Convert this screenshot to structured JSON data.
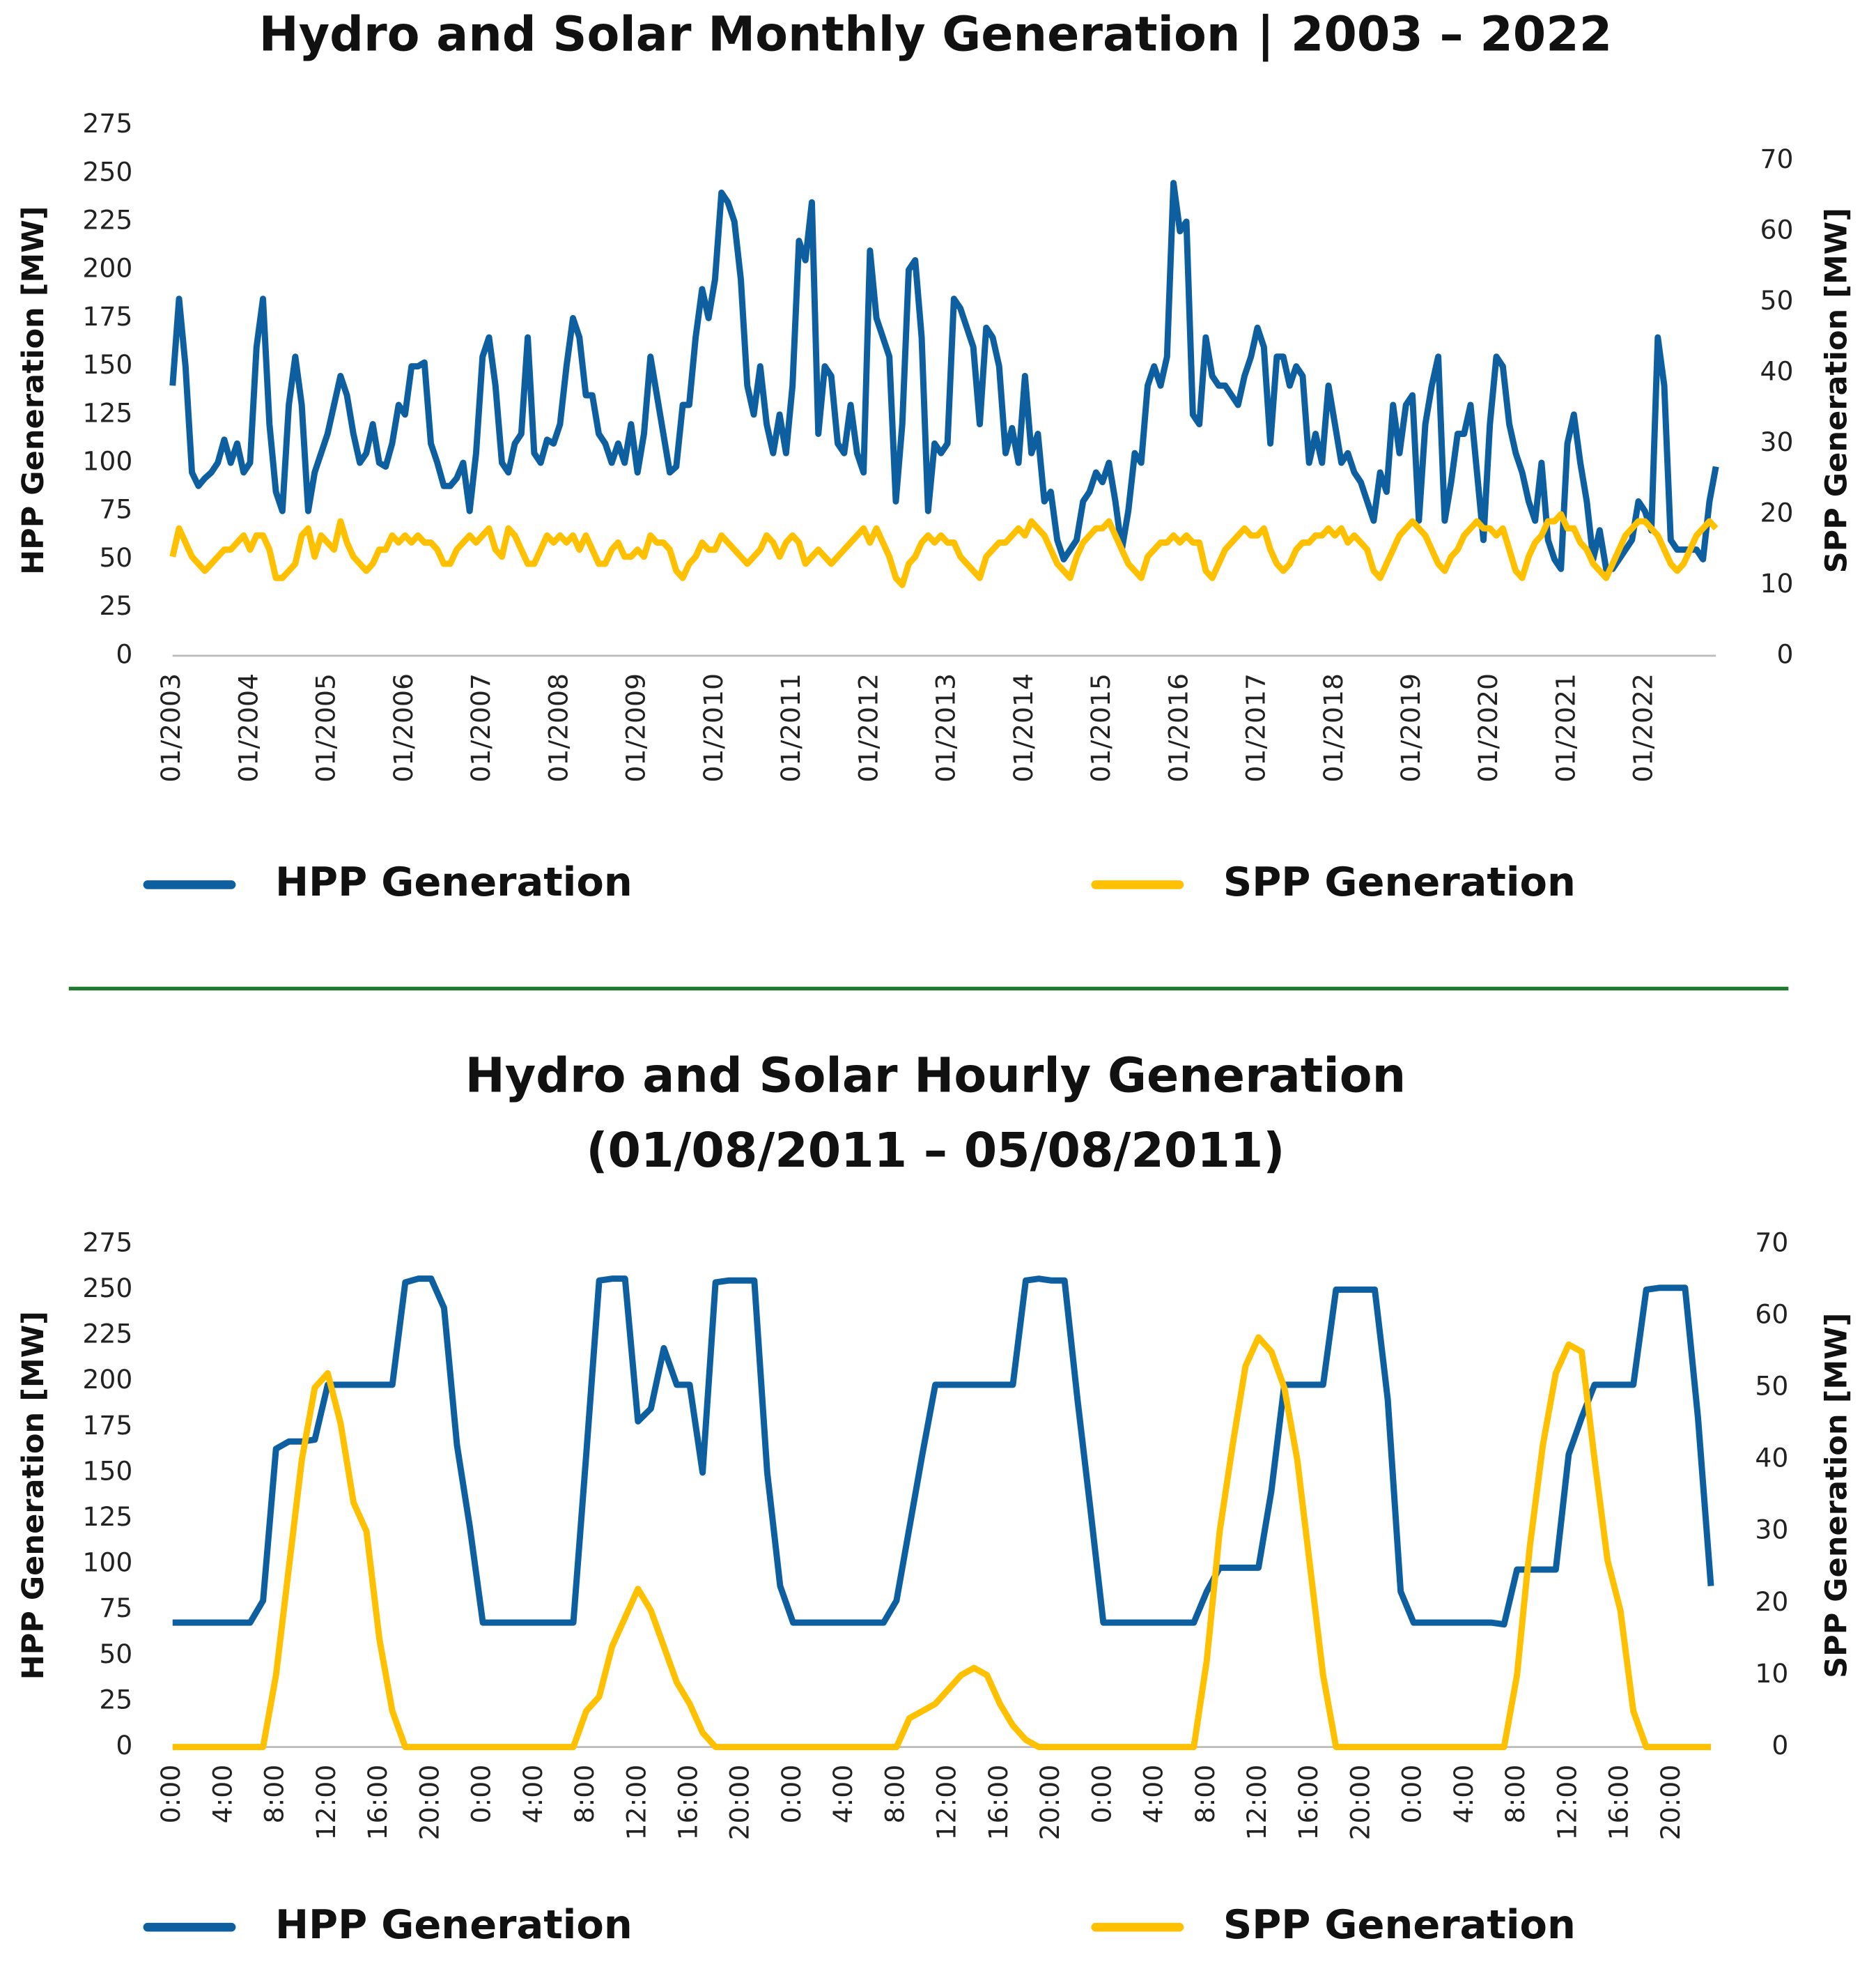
{
  "chart_data": [
    {
      "type": "line",
      "title": [
        "Hydro and Solar Monthly Generation | 2003 – 2022"
      ],
      "y_label": "HPP Generation [MW]",
      "y2_label": "SPP Generation [MW]",
      "categories": [
        "01/2003",
        null,
        null,
        null,
        null,
        null,
        null,
        null,
        null,
        null,
        null,
        null,
        "01/2004",
        null,
        null,
        null,
        null,
        null,
        null,
        null,
        null,
        null,
        null,
        null,
        "01/2005",
        null,
        null,
        null,
        null,
        null,
        null,
        null,
        null,
        null,
        null,
        null,
        "01/2006",
        null,
        null,
        null,
        null,
        null,
        null,
        null,
        null,
        null,
        null,
        null,
        "01/2007",
        null,
        null,
        null,
        null,
        null,
        null,
        null,
        null,
        null,
        null,
        null,
        "01/2008",
        null,
        null,
        null,
        null,
        null,
        null,
        null,
        null,
        null,
        null,
        null,
        "01/2009",
        null,
        null,
        null,
        null,
        null,
        null,
        null,
        null,
        null,
        null,
        null,
        "01/2010",
        null,
        null,
        null,
        null,
        null,
        null,
        null,
        null,
        null,
        null,
        null,
        "01/2011",
        null,
        null,
        null,
        null,
        null,
        null,
        null,
        null,
        null,
        null,
        null,
        "01/2012",
        null,
        null,
        null,
        null,
        null,
        null,
        null,
        null,
        null,
        null,
        null,
        "01/2013",
        null,
        null,
        null,
        null,
        null,
        null,
        null,
        null,
        null,
        null,
        null,
        "01/2014",
        null,
        null,
        null,
        null,
        null,
        null,
        null,
        null,
        null,
        null,
        null,
        "01/2015",
        null,
        null,
        null,
        null,
        null,
        null,
        null,
        null,
        null,
        null,
        null,
        "01/2016",
        null,
        null,
        null,
        null,
        null,
        null,
        null,
        null,
        null,
        null,
        null,
        "01/2017",
        null,
        null,
        null,
        null,
        null,
        null,
        null,
        null,
        null,
        null,
        null,
        "01/2018",
        null,
        null,
        null,
        null,
        null,
        null,
        null,
        null,
        null,
        null,
        null,
        "01/2019",
        null,
        null,
        null,
        null,
        null,
        null,
        null,
        null,
        null,
        null,
        null,
        "01/2020",
        null,
        null,
        null,
        null,
        null,
        null,
        null,
        null,
        null,
        null,
        null,
        "01/2021",
        null,
        null,
        null,
        null,
        null,
        null,
        null,
        null,
        null,
        null,
        null,
        "01/2022",
        null,
        null,
        null,
        null,
        null,
        null,
        null,
        null,
        null,
        null,
        null
      ],
      "series": [
        {
          "name": "HPP Generation",
          "color": "#0d5fa0",
          "values": [
            140,
            185,
            150,
            95,
            88,
            92,
            95,
            100,
            112,
            100,
            110,
            95,
            100,
            160,
            185,
            120,
            85,
            75,
            130,
            155,
            130,
            75,
            95,
            105,
            115,
            130,
            145,
            135,
            115,
            100,
            105,
            120,
            100,
            98,
            110,
            130,
            125,
            150,
            150,
            152,
            110,
            100,
            88,
            88,
            92,
            100,
            75,
            105,
            155,
            165,
            140,
            100,
            95,
            110,
            115,
            165,
            105,
            100,
            112,
            110,
            120,
            150,
            175,
            165,
            135,
            135,
            115,
            110,
            100,
            110,
            100,
            120,
            95,
            115,
            155,
            135,
            115,
            95,
            98,
            130,
            130,
            165,
            190,
            175,
            195,
            240,
            235,
            225,
            195,
            140,
            125,
            150,
            120,
            105,
            125,
            105,
            140,
            215,
            205,
            235,
            115,
            150,
            145,
            110,
            105,
            130,
            105,
            95,
            210,
            175,
            165,
            155,
            80,
            120,
            200,
            205,
            165,
            75,
            110,
            105,
            110,
            185,
            180,
            170,
            160,
            120,
            170,
            165,
            150,
            105,
            118,
            100,
            145,
            105,
            115,
            80,
            85,
            60,
            50,
            55,
            60,
            80,
            85,
            95,
            90,
            100,
            80,
            55,
            75,
            105,
            100,
            140,
            150,
            140,
            155,
            245,
            220,
            225,
            125,
            120,
            165,
            145,
            140,
            140,
            135,
            130,
            145,
            155,
            170,
            160,
            110,
            155,
            155,
            140,
            150,
            145,
            100,
            115,
            100,
            140,
            120,
            100,
            105,
            95,
            90,
            80,
            70,
            95,
            85,
            130,
            105,
            130,
            135,
            70,
            120,
            140,
            155,
            70,
            90,
            115,
            115,
            130,
            95,
            60,
            120,
            155,
            150,
            120,
            105,
            95,
            80,
            70,
            100,
            60,
            50,
            45,
            110,
            125,
            100,
            80,
            50,
            65,
            45,
            45,
            50,
            55,
            60,
            80,
            75,
            65,
            165,
            140,
            60,
            55,
            55,
            55,
            55,
            50,
            80,
            98
          ]
        },
        {
          "name": "SPP Generation",
          "color": "#ffc000",
          "axis": "y2",
          "values": [
            14,
            18,
            16,
            14,
            13,
            12,
            13,
            14,
            15,
            15,
            16,
            17,
            15,
            17,
            17,
            15,
            11,
            11,
            12,
            13,
            17,
            18,
            14,
            17,
            16,
            15,
            19,
            16,
            14,
            13,
            12,
            13,
            15,
            15,
            17,
            16,
            17,
            16,
            17,
            16,
            16,
            15,
            13,
            13,
            15,
            16,
            17,
            16,
            17,
            18,
            15,
            14,
            18,
            17,
            15,
            13,
            13,
            15,
            17,
            16,
            17,
            16,
            17,
            15,
            17,
            15,
            13,
            13,
            15,
            16,
            14,
            14,
            15,
            14,
            17,
            16,
            16,
            15,
            12,
            11,
            13,
            14,
            16,
            15,
            15,
            17,
            16,
            15,
            14,
            13,
            14,
            15,
            17,
            16,
            14,
            16,
            17,
            16,
            13,
            14,
            15,
            14,
            13,
            14,
            15,
            16,
            17,
            18,
            16,
            18,
            16,
            14,
            11,
            10,
            13,
            14,
            16,
            17,
            16,
            17,
            16,
            16,
            14,
            13,
            12,
            11,
            14,
            15,
            16,
            16,
            17,
            18,
            17,
            19,
            18,
            17,
            15,
            13,
            12,
            11,
            14,
            16,
            17,
            18,
            18,
            19,
            17,
            15,
            13,
            12,
            11,
            14,
            15,
            16,
            16,
            17,
            16,
            17,
            16,
            16,
            12,
            11,
            13,
            15,
            16,
            17,
            18,
            17,
            17,
            18,
            15,
            13,
            12,
            13,
            15,
            16,
            16,
            17,
            17,
            18,
            17,
            18,
            16,
            17,
            16,
            15,
            12,
            11,
            13,
            15,
            17,
            18,
            19,
            18,
            17,
            15,
            13,
            12,
            14,
            15,
            17,
            18,
            19,
            18,
            18,
            17,
            18,
            15,
            12,
            11,
            14,
            16,
            17,
            19,
            19,
            20,
            18,
            18,
            16,
            15,
            13,
            12,
            11,
            13,
            15,
            17,
            18,
            19,
            19,
            18,
            17,
            15,
            13,
            12,
            13,
            15,
            17,
            18,
            19,
            18
          ]
        }
      ],
      "ylim": [
        0,
        275
      ],
      "yticks": [
        0,
        25,
        50,
        75,
        100,
        125,
        150,
        175,
        200,
        225,
        250,
        275
      ],
      "y2lim": [
        0,
        75
      ],
      "y2ticks": [
        0,
        10,
        20,
        30,
        40,
        50,
        60,
        70
      ],
      "legend": "bottom"
    },
    {
      "type": "line",
      "title": [
        "Hydro and Solar Hourly Generation",
        "(01/08/2011 – 05/08/2011)"
      ],
      "y_label": "HPP Generation [MW]",
      "y2_label": "SPP Generation [MW]",
      "categories": [
        "0:00",
        null,
        null,
        null,
        "4:00",
        null,
        null,
        null,
        "8:00",
        null,
        null,
        null,
        "12:00",
        null,
        null,
        null,
        "16:00",
        null,
        null,
        null,
        "20:00",
        null,
        null,
        null,
        "0:00",
        null,
        null,
        null,
        "4:00",
        null,
        null,
        null,
        "8:00",
        null,
        null,
        null,
        "12:00",
        null,
        null,
        null,
        "16:00",
        null,
        null,
        null,
        "20:00",
        null,
        null,
        null,
        "0:00",
        null,
        null,
        null,
        "4:00",
        null,
        null,
        null,
        "8:00",
        null,
        null,
        null,
        "12:00",
        null,
        null,
        null,
        "16:00",
        null,
        null,
        null,
        "20:00",
        null,
        null,
        null,
        "0:00",
        null,
        null,
        null,
        "4:00",
        null,
        null,
        null,
        "8:00",
        null,
        null,
        null,
        "12:00",
        null,
        null,
        null,
        "16:00",
        null,
        null,
        null,
        "20:00",
        null,
        null,
        null,
        "0:00",
        null,
        null,
        null,
        "4:00",
        null,
        null,
        null,
        "8:00",
        null,
        null,
        null,
        "12:00",
        null,
        null,
        null,
        "16:00",
        null,
        null,
        null,
        "20:00",
        null,
        null,
        null
      ],
      "series": [
        {
          "name": "HPP Generation",
          "color": "#0d5fa0",
          "values": [
            68,
            68,
            68,
            68,
            68,
            68,
            68,
            80,
            163,
            167,
            167,
            168,
            198,
            198,
            198,
            198,
            198,
            198,
            254,
            256,
            256,
            240,
            165,
            120,
            68,
            68,
            68,
            68,
            68,
            68,
            68,
            68,
            160,
            255,
            256,
            256,
            178,
            185,
            218,
            198,
            198,
            150,
            254,
            255,
            255,
            255,
            150,
            88,
            68,
            68,
            68,
            68,
            68,
            68,
            68,
            68,
            80,
            120,
            160,
            198,
            198,
            198,
            198,
            198,
            198,
            198,
            255,
            256,
            255,
            255,
            190,
            130,
            68,
            68,
            68,
            68,
            68,
            68,
            68,
            68,
            85,
            98,
            98,
            98,
            98,
            140,
            198,
            198,
            198,
            198,
            250,
            250,
            250,
            250,
            190,
            85,
            68,
            68,
            68,
            68,
            68,
            68,
            68,
            67,
            97,
            97,
            97,
            97,
            160,
            180,
            198,
            198,
            198,
            198,
            250,
            251,
            251,
            251,
            180,
            88
          ]
        },
        {
          "name": "SPP Generation",
          "color": "#ffc000",
          "axis": "y2",
          "values": [
            0,
            0,
            0,
            0,
            0,
            0,
            0,
            0,
            10,
            25,
            40,
            50,
            52,
            45,
            34,
            30,
            15,
            5,
            0,
            0,
            0,
            0,
            0,
            0,
            0,
            0,
            0,
            0,
            0,
            0,
            0,
            0,
            5,
            7,
            14,
            18,
            22,
            19,
            14,
            9,
            6,
            2,
            0,
            0,
            0,
            0,
            0,
            0,
            0,
            0,
            0,
            0,
            0,
            0,
            0,
            0,
            0,
            4,
            5,
            6,
            8,
            10,
            11,
            10,
            6,
            3,
            1,
            0,
            0,
            0,
            0,
            0,
            0,
            0,
            0,
            0,
            0,
            0,
            0,
            0,
            12,
            30,
            42,
            53,
            57,
            55,
            50,
            40,
            25,
            10,
            0,
            0,
            0,
            0,
            0,
            0,
            0,
            0,
            0,
            0,
            0,
            0,
            0,
            0,
            10,
            28,
            42,
            52,
            56,
            55,
            40,
            26,
            19,
            5,
            0,
            0,
            0,
            0,
            0,
            0
          ]
        }
      ],
      "ylim": [
        0,
        275
      ],
      "yticks": [
        0,
        25,
        50,
        75,
        100,
        125,
        150,
        175,
        200,
        225,
        250,
        275
      ],
      "y2lim": [
        0,
        70
      ],
      "y2ticks": [
        0,
        10,
        20,
        30,
        40,
        50,
        60,
        70
      ],
      "legend": "bottom"
    }
  ]
}
